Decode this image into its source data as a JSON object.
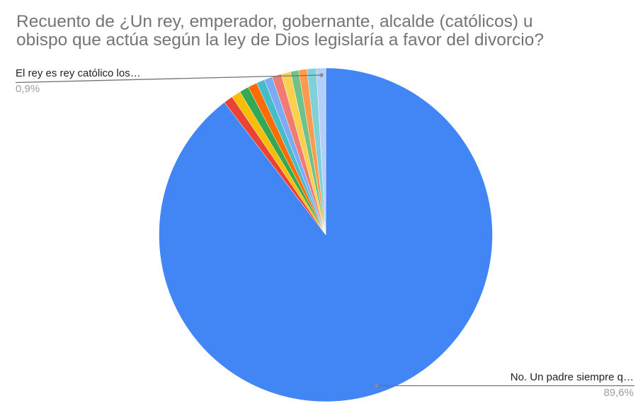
{
  "chart_data": {
    "type": "pie",
    "title": "Recuento de ¿Un rey, emperador, gobernante, alcalde (católicos) u obispo que actúa según la ley de Dios legislaría a favor del divorcio?",
    "title_lines": [
      "Recuento de ¿Un rey, emperador, gobernante, alcalde (católicos) u",
      "obispo que actúa según la ley de Dios legislaría a favor del divorcio?"
    ],
    "slices": [
      {
        "label": "No. Un padre siempre q…",
        "value": 89.6,
        "color": "#4285f4"
      },
      {
        "label": "",
        "value": 0.9,
        "color": "#ea4335"
      },
      {
        "label": "",
        "value": 0.9,
        "color": "#fbbc04"
      },
      {
        "label": "",
        "value": 0.9,
        "color": "#34a853"
      },
      {
        "label": "",
        "value": 0.9,
        "color": "#ff6d01"
      },
      {
        "label": "",
        "value": 0.8,
        "color": "#46bdc6"
      },
      {
        "label": "",
        "value": 0.8,
        "color": "#7baaf7"
      },
      {
        "label": "",
        "value": 0.9,
        "color": "#f07b72"
      },
      {
        "label": "",
        "value": 0.9,
        "color": "#fcd04f"
      },
      {
        "label": "",
        "value": 0.8,
        "color": "#71c287"
      },
      {
        "label": "",
        "value": 0.8,
        "color": "#ff994d"
      },
      {
        "label": "",
        "value": 0.9,
        "color": "#7ed1d7"
      },
      {
        "label": "El rey es rey católico los…",
        "value": 0.9,
        "color": "#b3cefb"
      }
    ],
    "annotations": [
      {
        "label": "El rey es rey católico los…",
        "percent_text": "0,9%"
      },
      {
        "label": "No. Un padre siempre q…",
        "percent_text": "89,6%"
      }
    ],
    "legend_position": "labeled"
  }
}
